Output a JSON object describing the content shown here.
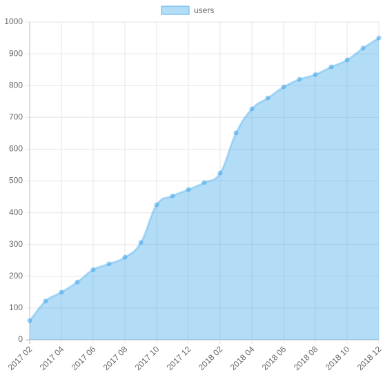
{
  "chart_data": {
    "type": "area",
    "legend": "top",
    "categories": [
      "2017 02",
      null,
      "2017 04",
      null,
      "2017 06",
      null,
      "2017 08",
      null,
      "2017 10",
      null,
      "2017 12",
      null,
      "2018 02",
      null,
      "2018 04",
      null,
      "2018 06",
      null,
      "2018 08",
      null,
      "2018 10",
      null,
      "2018 12"
    ],
    "series": [
      {
        "name": "users",
        "color": "#36a2eb",
        "values": [
          60,
          122,
          150,
          182,
          221,
          239,
          260,
          306,
          425,
          453,
          473,
          495,
          525,
          651,
          727,
          761,
          796,
          820,
          835,
          859,
          881,
          918,
          950
        ]
      }
    ],
    "ylim": [
      0,
      1000
    ],
    "yticks": [
      0,
      100,
      200,
      300,
      400,
      500,
      600,
      700,
      800,
      900,
      1000
    ],
    "grid": true
  }
}
